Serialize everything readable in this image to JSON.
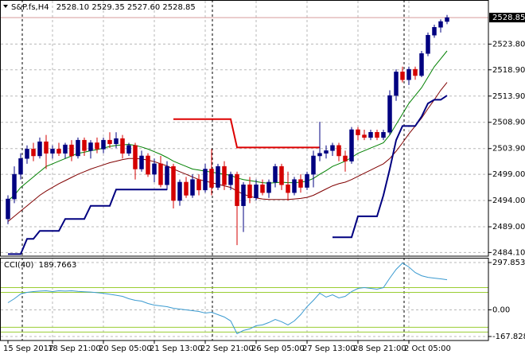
{
  "chart_data": [
    {
      "type": "candlestick",
      "title": "S&P.fs,H4",
      "header_labels": [
        "2528.10",
        "2529.35",
        "2527.60",
        "2528.85"
      ],
      "categories": [
        "15 Sep 2017",
        null,
        null,
        null,
        null,
        null,
        null,
        "18 Sep 21:00",
        null,
        null,
        null,
        null,
        null,
        null,
        null,
        "20 Sep 05:00",
        null,
        null,
        null,
        null,
        null,
        null,
        null,
        "21 Sep 13:00",
        null,
        null,
        null,
        null,
        null,
        null,
        null,
        "22 Sep 21:00",
        null,
        null,
        null,
        null,
        null,
        null,
        null,
        "26 Sep 05:00",
        null,
        null,
        null,
        null,
        null,
        null,
        null,
        "27 Sep 13:00",
        null,
        null,
        null,
        null,
        null,
        null,
        null,
        "28 Sep 21:00",
        null,
        null,
        null,
        null,
        null,
        null,
        null,
        "2 Oct 05:00",
        null,
        null,
        null,
        null,
        null,
        null
      ],
      "open": [
        2490.5,
        2494.3,
        2499.0,
        2502.0,
        2503.8,
        2502.5,
        2505.2,
        2503.0,
        2503.8,
        2503.0,
        2504.6,
        2502.5,
        2505.5,
        2503.5,
        2505.0,
        2503.8,
        2505.5,
        2504.8,
        2505.8,
        2503.0,
        2504.5,
        2500.0,
        2502.5,
        2499.0,
        2501.0,
        2497.0,
        2500.5,
        2494.0,
        2497.5,
        2495.0,
        2498.0,
        2496.0,
        2500.0,
        2496.5,
        2500.5,
        2497.0,
        2499.0,
        2493.0,
        2497.0,
        2494.5,
        2497.0,
        2495.5,
        2497.5,
        2500.5,
        2497.0,
        2495.5,
        2498.0,
        2496.5,
        2499.0,
        2502.5,
        2503.0,
        2503.5,
        2504.5,
        2502.5,
        2501.5,
        2507.5,
        2506.5,
        2506.0,
        2507.0,
        2506.0,
        2507.0,
        2514.0,
        2518.5,
        2517.0,
        2519.0,
        2517.8,
        2522.0,
        2525.5,
        2527.0,
        2528.1
      ],
      "high": [
        2495.0,
        2500.5,
        2503.0,
        2504.5,
        2505.0,
        2506.0,
        2506.5,
        2504.5,
        2505.0,
        2505.0,
        2505.5,
        2506.0,
        2506.0,
        2505.5,
        2506.0,
        2506.0,
        2507.0,
        2507.0,
        2506.5,
        2505.0,
        2505.0,
        2503.5,
        2503.0,
        2502.0,
        2502.5,
        2501.5,
        2501.0,
        2498.0,
        2498.5,
        2499.0,
        2499.0,
        2501.0,
        2503.8,
        2501.0,
        2501.5,
        2499.5,
        2499.5,
        2497.5,
        2498.5,
        2498.0,
        2498.0,
        2498.0,
        2501.0,
        2501.0,
        2499.5,
        2498.5,
        2499.0,
        2499.5,
        2503.5,
        2509.0,
        2504.5,
        2505.0,
        2505.0,
        2503.5,
        2508.0,
        2508.0,
        2507.5,
        2507.5,
        2507.5,
        2507.5,
        2515.0,
        2519.0,
        2519.5,
        2519.5,
        2519.5,
        2522.5,
        2526.0,
        2527.5,
        2528.5,
        2529.35
      ],
      "low": [
        2489.5,
        2493.5,
        2498.0,
        2501.0,
        2501.5,
        2502.0,
        2500.0,
        2502.0,
        2502.5,
        2502.0,
        2501.5,
        2502.0,
        2502.5,
        2502.0,
        2503.0,
        2503.0,
        2504.0,
        2504.0,
        2502.0,
        2502.5,
        2498.0,
        2499.5,
        2498.5,
        2497.5,
        2496.5,
        2496.0,
        2492.5,
        2493.0,
        2494.5,
        2494.5,
        2495.0,
        2495.5,
        2495.0,
        2496.0,
        2496.0,
        2496.0,
        2485.5,
        2488.0,
        2493.5,
        2494.0,
        2495.0,
        2494.5,
        2496.5,
        2496.0,
        2494.0,
        2495.0,
        2495.5,
        2496.0,
        2496.5,
        2501.5,
        2502.0,
        2502.5,
        2501.5,
        2499.5,
        2501.0,
        2505.5,
        2505.5,
        2505.5,
        2505.5,
        2505.5,
        2506.5,
        2513.0,
        2516.5,
        2516.0,
        2517.0,
        2517.5,
        2521.5,
        2525.0,
        2526.0,
        2527.6
      ],
      "close": [
        2494.3,
        2499.0,
        2502.0,
        2503.8,
        2502.5,
        2505.2,
        2503.0,
        2503.8,
        2503.0,
        2504.6,
        2502.5,
        2505.5,
        2503.5,
        2505.0,
        2503.8,
        2505.5,
        2504.8,
        2505.8,
        2503.0,
        2504.5,
        2500.0,
        2502.5,
        2499.0,
        2501.0,
        2497.0,
        2500.5,
        2494.0,
        2497.5,
        2495.0,
        2498.0,
        2496.0,
        2500.0,
        2496.5,
        2500.5,
        2497.0,
        2499.0,
        2493.0,
        2497.0,
        2494.5,
        2497.0,
        2495.5,
        2497.5,
        2500.5,
        2497.0,
        2495.5,
        2498.0,
        2496.5,
        2499.0,
        2502.5,
        2503.0,
        2503.5,
        2504.5,
        2502.5,
        2501.5,
        2507.5,
        2506.5,
        2506.0,
        2507.0,
        2506.0,
        2507.0,
        2514.0,
        2518.5,
        2517.0,
        2519.0,
        2517.8,
        2522.0,
        2525.5,
        2527.0,
        2528.1,
        2528.85
      ],
      "up_color": "#000080",
      "down_color": "#d40000",
      "lines": [
        {
          "color": "#008000",
          "width": 1,
          "values": [
            2494,
            2495,
            2496.5,
            2497.5,
            2498.5,
            2499.5,
            2500.5,
            2501,
            2501.5,
            2502,
            2502.5,
            2503,
            2503.2,
            2503.5,
            2503.7,
            2504,
            2504.3,
            2504.5,
            2504.6,
            2504.7,
            2504.5,
            2504.2,
            2503.8,
            2503.3,
            2502.8,
            2502.2,
            2501.5,
            2501,
            2500.5,
            2500,
            2499.8,
            2499.6,
            2499.4,
            2499.2,
            2499,
            2498.8,
            2498.3,
            2498,
            2497.8,
            2497.6,
            2497.4,
            2497.3,
            2497.4,
            2497.5,
            2497.4,
            2497.4,
            2497.5,
            2497.7,
            2498.2,
            2499,
            2499.7,
            2500.5,
            2501,
            2501.5,
            2502.2,
            2503,
            2503.5,
            2504,
            2504.5,
            2505,
            2506.5,
            2508.5,
            2510.5,
            2512.5,
            2514,
            2515.5,
            2517.5,
            2519.5,
            2521,
            2522.5
          ]
        },
        {
          "color": "#800000",
          "width": 1,
          "values": [
            2490,
            2491,
            2492,
            2493,
            2494,
            2495,
            2495.8,
            2496.5,
            2497.2,
            2497.8,
            2498.4,
            2499,
            2499.5,
            2500,
            2500.4,
            2500.8,
            2501.2,
            2501.5,
            2501.8,
            2502,
            2502,
            2501.9,
            2501.7,
            2501.4,
            2501,
            2500.6,
            2500,
            2499.5,
            2499,
            2498.5,
            2498,
            2497.7,
            2497.4,
            2497.1,
            2496.8,
            2496.5,
            2495.8,
            2495.2,
            2494.8,
            2494.5,
            2494.3,
            2494.2,
            2494.2,
            2494.2,
            2494.2,
            2494.3,
            2494.4,
            2494.6,
            2495,
            2495.6,
            2496.2,
            2496.8,
            2497.2,
            2497.5,
            2498,
            2498.6,
            2499.2,
            2499.8,
            2500.4,
            2501,
            2502,
            2503.4,
            2505,
            2506.7,
            2508.2,
            2509.7,
            2511.5,
            2513.2,
            2515,
            2516.5
          ]
        },
        {
          "color": "#000080",
          "width": 2,
          "values": [
            2483.8,
            2483.8,
            2483.8,
            2486.7,
            2486.7,
            2488.2,
            2488.2,
            2488.2,
            2488.2,
            2490.5,
            2490.5,
            2490.5,
            2490.5,
            2493,
            2493,
            2493,
            2493,
            2496.1,
            2496.1,
            2496.1,
            2496.1,
            2496.1,
            2496.1,
            2496.1,
            2496.1,
            2496.1,
            null,
            null,
            null,
            null,
            null,
            null,
            null,
            null,
            null,
            null,
            null,
            null,
            null,
            null,
            null,
            null,
            null,
            null,
            null,
            null,
            null,
            null,
            null,
            null,
            null,
            2487,
            2487,
            2487,
            2487,
            2491,
            2491,
            2491,
            2491,
            2495,
            2500,
            2505.5,
            2508.2,
            2508.2,
            2508.2,
            2510,
            2512.5,
            2513.2,
            2513.2,
            2514
          ]
        },
        {
          "color": "#dd0000",
          "width": 2,
          "values": [
            null,
            null,
            null,
            null,
            null,
            null,
            null,
            null,
            null,
            null,
            null,
            null,
            null,
            null,
            null,
            null,
            null,
            null,
            null,
            null,
            null,
            null,
            null,
            null,
            null,
            null,
            2509.5,
            2509.5,
            2509.5,
            2509.5,
            2509.5,
            2509.5,
            2509.5,
            2509.5,
            2509.5,
            2509.5,
            2504.1,
            2504.1,
            2504.1,
            2504.1,
            2504.1,
            2504.1,
            2504.1,
            2504.1,
            2504.1,
            2504.1,
            2504.1,
            2504.1,
            2504.1,
            2504.1,
            null,
            null,
            null,
            null,
            null,
            null,
            null,
            null,
            null,
            null,
            null,
            null,
            null,
            null,
            null,
            null,
            null,
            null,
            null,
            null
          ]
        }
      ],
      "price_marker": {
        "value": 2528.85,
        "label": "2528.85"
      },
      "ylim": [
        2483.4,
        2532.2
      ],
      "yticks": [
        {
          "value": 2523.8,
          "label": "2523.80"
        },
        {
          "value": 2518.9,
          "label": "2518.90"
        },
        {
          "value": 2513.9,
          "label": "2513.90"
        },
        {
          "value": 2508.9,
          "label": "2508.90"
        },
        {
          "value": 2503.9,
          "label": "2503.90"
        },
        {
          "value": 2499,
          "label": "2499.00"
        },
        {
          "value": 2494,
          "label": "2494.00"
        },
        {
          "value": 2489,
          "label": "2489.00"
        },
        {
          "value": 2484.1,
          "label": "2484.10"
        }
      ],
      "grid": true
    },
    {
      "type": "line",
      "title": "CCI(40)",
      "color": "#3a9ad0",
      "values": [
        45,
        70,
        100,
        110,
        115,
        118,
        120,
        115,
        120,
        118,
        120,
        116,
        114,
        112,
        108,
        104,
        98,
        92,
        85,
        70,
        60,
        55,
        40,
        30,
        25,
        20,
        10,
        5,
        0,
        -5,
        -10,
        -20,
        -15,
        -30,
        -45,
        -70,
        -150,
        -130,
        -120,
        -100,
        -95,
        -80,
        -60,
        -75,
        -95,
        -70,
        -30,
        20,
        60,
        105,
        80,
        95,
        75,
        85,
        115,
        135,
        140,
        135,
        130,
        140,
        200,
        255,
        295,
        270,
        235,
        215,
        205,
        200,
        195,
        189.7663
      ],
      "levels": [
        140,
        110,
        -110,
        -140
      ],
      "level_color": "#9acd32",
      "ylim": [
        -193,
        328
      ],
      "yticks": [
        {
          "value": 297.8539,
          "label": "297.8539"
        },
        {
          "value": 0,
          "label": "0.00"
        },
        {
          "value": -167.8282,
          "label": "-167.8282"
        }
      ],
      "grid": true
    }
  ]
}
